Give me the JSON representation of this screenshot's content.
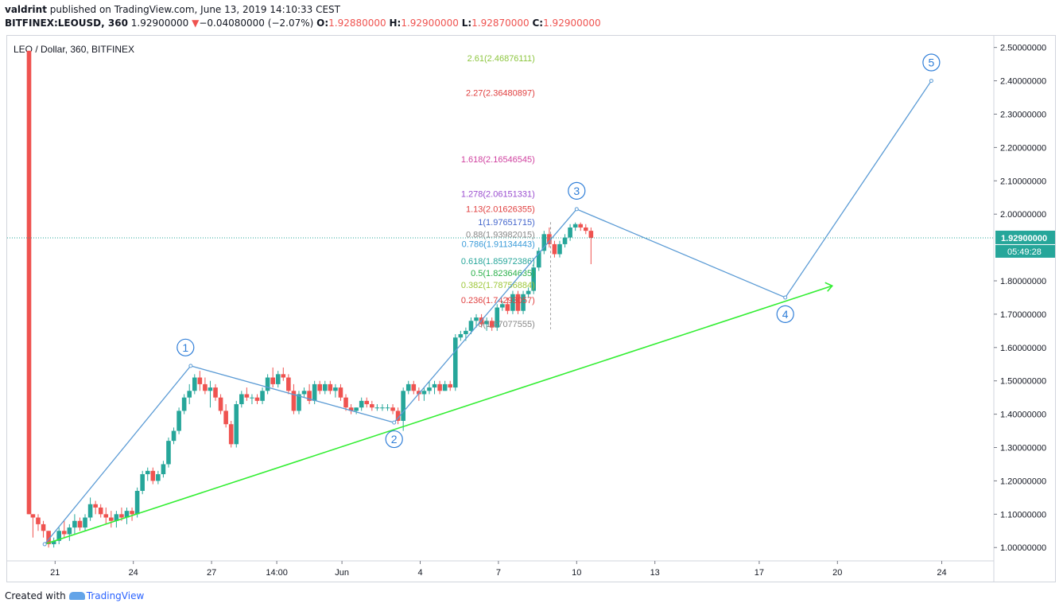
{
  "header": {
    "author": "valdrint",
    "published_text": "published on TradingView.com, June 13, 2019 14:10:33 CEST",
    "symbol": "BITFINEX:LEOUSD, 360",
    "last": "1.92900000",
    "change_arrow": "▼",
    "change": "−0.04080000 (−2.07%)",
    "o_label": "O:",
    "o": "1.92880000",
    "h_label": "H:",
    "h": "1.92900000",
    "l_label": "L:",
    "l": "1.92870000",
    "c_label": "C:",
    "c": "1.92900000"
  },
  "chart_title": "LEO / Dollar, 360, BITFINEX",
  "footer": {
    "created_with": "Created with",
    "brand": "TradingView"
  },
  "chart_data": {
    "type": "candlestick",
    "ylim": [
      0.96,
      2.535
    ],
    "y_ticks": [
      {
        "v": 1.0,
        "label": "1.00000000"
      },
      {
        "v": 1.1,
        "label": "1.10000000"
      },
      {
        "v": 1.2,
        "label": "1.20000000"
      },
      {
        "v": 1.3,
        "label": "1.30000000"
      },
      {
        "v": 1.4,
        "label": "1.40000000"
      },
      {
        "v": 1.5,
        "label": "1.50000000"
      },
      {
        "v": 1.6,
        "label": "1.60000000"
      },
      {
        "v": 1.7,
        "label": "1.70000000"
      },
      {
        "v": 1.8,
        "label": "1.80000000"
      },
      {
        "v": 2.0,
        "label": "2.00000000"
      },
      {
        "v": 2.1,
        "label": "2.10000000"
      },
      {
        "v": 2.2,
        "label": "2.20000000"
      },
      {
        "v": 2.3,
        "label": "2.30000000"
      },
      {
        "v": 2.4,
        "label": "2.40000000"
      },
      {
        "v": 2.5,
        "label": "2.50000000"
      }
    ],
    "x_ticks": [
      {
        "x": 1,
        "label": "21"
      },
      {
        "x": 4,
        "label": "24"
      },
      {
        "x": 7,
        "label": "27"
      },
      {
        "x": 9.5,
        "label": "14:00"
      },
      {
        "x": 12,
        "label": "Jun"
      },
      {
        "x": 15,
        "label": "4"
      },
      {
        "x": 18,
        "label": "7"
      },
      {
        "x": 21,
        "label": "10"
      },
      {
        "x": 24,
        "label": "13"
      },
      {
        "x": 28,
        "label": "17"
      },
      {
        "x": 31,
        "label": "20"
      },
      {
        "x": 35,
        "label": "24"
      }
    ],
    "colors": {
      "up": "#26a69a",
      "down": "#ef5350",
      "wave": "#5b9bd5",
      "trend": "#33ee33",
      "last": "#26a69a"
    },
    "candles": [
      [
        0.0,
        2.49,
        2.49,
        1.1,
        1.1
      ],
      [
        0.15,
        1.1,
        1.1,
        1.03,
        1.09
      ],
      [
        0.35,
        1.09,
        1.1,
        1.05,
        1.07
      ],
      [
        0.55,
        1.07,
        1.08,
        1.03,
        1.05
      ],
      [
        0.75,
        1.05,
        1.05,
        1.0,
        1.01
      ],
      [
        0.95,
        1.01,
        1.03,
        1.0,
        1.02
      ],
      [
        1.15,
        1.02,
        1.06,
        1.01,
        1.05
      ],
      [
        1.35,
        1.05,
        1.08,
        1.03,
        1.04
      ],
      [
        1.55,
        1.04,
        1.07,
        1.02,
        1.06
      ],
      [
        1.75,
        1.06,
        1.1,
        1.04,
        1.08
      ],
      [
        1.95,
        1.08,
        1.09,
        1.05,
        1.06
      ],
      [
        2.15,
        1.06,
        1.1,
        1.05,
        1.09
      ],
      [
        2.35,
        1.09,
        1.15,
        1.08,
        1.13
      ],
      [
        2.55,
        1.13,
        1.14,
        1.1,
        1.12
      ],
      [
        2.75,
        1.12,
        1.13,
        1.09,
        1.1
      ],
      [
        2.95,
        1.1,
        1.12,
        1.07,
        1.09
      ],
      [
        3.15,
        1.09,
        1.11,
        1.06,
        1.08
      ],
      [
        3.35,
        1.08,
        1.11,
        1.06,
        1.1
      ],
      [
        3.55,
        1.1,
        1.12,
        1.08,
        1.09
      ],
      [
        3.75,
        1.09,
        1.12,
        1.07,
        1.11
      ],
      [
        3.95,
        1.11,
        1.12,
        1.08,
        1.1
      ],
      [
        4.15,
        1.1,
        1.18,
        1.09,
        1.17
      ],
      [
        4.35,
        1.17,
        1.23,
        1.16,
        1.22
      ],
      [
        4.55,
        1.22,
        1.24,
        1.2,
        1.23
      ],
      [
        4.75,
        1.23,
        1.24,
        1.19,
        1.2
      ],
      [
        4.95,
        1.2,
        1.23,
        1.19,
        1.22
      ],
      [
        5.15,
        1.22,
        1.26,
        1.21,
        1.25
      ],
      [
        5.35,
        1.25,
        1.33,
        1.24,
        1.32
      ],
      [
        5.55,
        1.32,
        1.36,
        1.31,
        1.35
      ],
      [
        5.75,
        1.35,
        1.42,
        1.34,
        1.41
      ],
      [
        5.95,
        1.41,
        1.46,
        1.4,
        1.45
      ],
      [
        6.15,
        1.45,
        1.49,
        1.43,
        1.47
      ],
      [
        6.35,
        1.47,
        1.52,
        1.46,
        1.51
      ],
      [
        6.55,
        1.51,
        1.53,
        1.47,
        1.49
      ],
      [
        6.75,
        1.49,
        1.51,
        1.46,
        1.47
      ],
      [
        6.95,
        1.47,
        1.5,
        1.42,
        1.48
      ],
      [
        7.15,
        1.48,
        1.49,
        1.44,
        1.45
      ],
      [
        7.35,
        1.45,
        1.46,
        1.4,
        1.41
      ],
      [
        7.55,
        1.41,
        1.43,
        1.36,
        1.37
      ],
      [
        7.75,
        1.37,
        1.38,
        1.3,
        1.31
      ],
      [
        7.95,
        1.31,
        1.44,
        1.3,
        1.43
      ],
      [
        8.15,
        1.43,
        1.47,
        1.42,
        1.46
      ],
      [
        8.35,
        1.46,
        1.48,
        1.44,
        1.45
      ],
      [
        8.55,
        1.45,
        1.46,
        1.43,
        1.45
      ],
      [
        8.75,
        1.45,
        1.46,
        1.43,
        1.44
      ],
      [
        8.95,
        1.44,
        1.48,
        1.43,
        1.47
      ],
      [
        9.15,
        1.47,
        1.52,
        1.46,
        1.51
      ],
      [
        9.35,
        1.51,
        1.54,
        1.48,
        1.49
      ],
      [
        9.55,
        1.49,
        1.53,
        1.48,
        1.52
      ],
      [
        9.75,
        1.52,
        1.54,
        1.5,
        1.51
      ],
      [
        9.95,
        1.51,
        1.52,
        1.46,
        1.47
      ],
      [
        10.15,
        1.47,
        1.49,
        1.4,
        1.41
      ],
      [
        10.35,
        1.41,
        1.47,
        1.4,
        1.46
      ],
      [
        10.55,
        1.46,
        1.48,
        1.45,
        1.47
      ],
      [
        10.75,
        1.47,
        1.49,
        1.43,
        1.44
      ],
      [
        10.95,
        1.44,
        1.5,
        1.43,
        1.49
      ],
      [
        11.15,
        1.49,
        1.5,
        1.46,
        1.47
      ],
      [
        11.35,
        1.47,
        1.5,
        1.46,
        1.49
      ],
      [
        11.55,
        1.49,
        1.5,
        1.46,
        1.47
      ],
      [
        11.75,
        1.47,
        1.49,
        1.45,
        1.48
      ],
      [
        11.95,
        1.48,
        1.49,
        1.44,
        1.45
      ],
      [
        12.15,
        1.45,
        1.46,
        1.41,
        1.42
      ],
      [
        12.35,
        1.42,
        1.43,
        1.4,
        1.41
      ],
      [
        12.55,
        1.41,
        1.42,
        1.4,
        1.42
      ],
      [
        12.75,
        1.42,
        1.45,
        1.41,
        1.44
      ],
      [
        12.95,
        1.44,
        1.45,
        1.42,
        1.43
      ],
      [
        13.15,
        1.43,
        1.44,
        1.41,
        1.42
      ],
      [
        13.35,
        1.42,
        1.43,
        1.41,
        1.42
      ],
      [
        13.55,
        1.42,
        1.43,
        1.41,
        1.42
      ],
      [
        13.75,
        1.42,
        1.43,
        1.41,
        1.42
      ],
      [
        13.95,
        1.42,
        1.43,
        1.4,
        1.41
      ],
      [
        14.15,
        1.41,
        1.42,
        1.37,
        1.38
      ],
      [
        14.35,
        1.38,
        1.48,
        1.35,
        1.47
      ],
      [
        14.55,
        1.47,
        1.5,
        1.46,
        1.49
      ],
      [
        14.75,
        1.49,
        1.5,
        1.46,
        1.47
      ],
      [
        14.95,
        1.47,
        1.48,
        1.44,
        1.46
      ],
      [
        15.15,
        1.46,
        1.48,
        1.44,
        1.47
      ],
      [
        15.35,
        1.47,
        1.5,
        1.46,
        1.48
      ],
      [
        15.55,
        1.48,
        1.5,
        1.46,
        1.49
      ],
      [
        15.75,
        1.49,
        1.5,
        1.46,
        1.47
      ],
      [
        15.95,
        1.47,
        1.5,
        1.47,
        1.49
      ],
      [
        16.15,
        1.49,
        1.5,
        1.47,
        1.48
      ],
      [
        16.35,
        1.48,
        1.64,
        1.47,
        1.63
      ],
      [
        16.55,
        1.63,
        1.65,
        1.62,
        1.64
      ],
      [
        16.75,
        1.64,
        1.66,
        1.62,
        1.65
      ],
      [
        16.95,
        1.65,
        1.69,
        1.64,
        1.68
      ],
      [
        17.15,
        1.68,
        1.7,
        1.66,
        1.69
      ],
      [
        17.35,
        1.69,
        1.7,
        1.66,
        1.67
      ],
      [
        17.55,
        1.67,
        1.69,
        1.65,
        1.68
      ],
      [
        17.75,
        1.68,
        1.69,
        1.65,
        1.66
      ],
      [
        17.95,
        1.66,
        1.73,
        1.65,
        1.72
      ],
      [
        18.15,
        1.72,
        1.74,
        1.71,
        1.73
      ],
      [
        18.35,
        1.73,
        1.75,
        1.7,
        1.71
      ],
      [
        18.55,
        1.71,
        1.77,
        1.7,
        1.76
      ],
      [
        18.75,
        1.76,
        1.77,
        1.7,
        1.71
      ],
      [
        18.95,
        1.71,
        1.77,
        1.7,
        1.76
      ],
      [
        19.15,
        1.76,
        1.78,
        1.75,
        1.77
      ],
      [
        19.35,
        1.77,
        1.85,
        1.76,
        1.84
      ],
      [
        19.55,
        1.84,
        1.9,
        1.83,
        1.89
      ],
      [
        19.75,
        1.89,
        1.95,
        1.88,
        1.94
      ],
      [
        19.95,
        1.94,
        1.96,
        1.9,
        1.91
      ],
      [
        20.15,
        1.91,
        1.92,
        1.87,
        1.88
      ],
      [
        20.35,
        1.88,
        1.92,
        1.87,
        1.91
      ],
      [
        20.55,
        1.91,
        1.94,
        1.9,
        1.93
      ],
      [
        20.75,
        1.93,
        1.97,
        1.92,
        1.96
      ],
      [
        20.95,
        1.96,
        1.975,
        1.95,
        1.97
      ],
      [
        21.15,
        1.97,
        1.975,
        1.95,
        1.96
      ],
      [
        21.35,
        1.96,
        1.97,
        1.94,
        1.95
      ],
      [
        21.55,
        1.95,
        1.96,
        1.85,
        1.929
      ]
    ],
    "last_price": {
      "v": 1.929,
      "label": "1.92900000",
      "countdown": "05:49:28"
    },
    "wave": {
      "points": [
        [
          0.6,
          1.01
        ],
        [
          6.2,
          1.545
        ],
        [
          14.0,
          1.375
        ],
        [
          21.0,
          2.015
        ],
        [
          29.0,
          1.75
        ],
        [
          34.6,
          2.4
        ]
      ],
      "labels": [
        {
          "t": "1",
          "x": 6.0,
          "v": 1.6
        },
        {
          "t": "2",
          "x": 14.0,
          "v": 1.325
        },
        {
          "t": "3",
          "x": 21.0,
          "v": 2.07
        },
        {
          "t": "4",
          "x": 29.0,
          "v": 1.7
        },
        {
          "t": "5",
          "x": 34.6,
          "v": 2.455
        }
      ]
    },
    "trendline": [
      [
        0.6,
        1.01
      ],
      [
        30.8,
        1.785
      ]
    ],
    "fib": {
      "x_label": 19.4,
      "x_dash": 20.0,
      "v_top": 1.976,
      "v_bottom": 1.655,
      "levels": [
        {
          "text": "2.61(2.46876111)",
          "v": 2.46876111,
          "color": "#8dc63f"
        },
        {
          "text": "2.27(2.36480897)",
          "v": 2.36480897,
          "color": "#e04040"
        },
        {
          "text": "1.618(2.16546545)",
          "v": 2.16546545,
          "color": "#d042a0"
        },
        {
          "text": "1.278(2.06151331)",
          "v": 2.06151331,
          "color": "#9b4fd0"
        },
        {
          "text": "1.13(2.01626355)",
          "v": 2.01626355,
          "color": "#e04040"
        },
        {
          "text": "1(1.97651715)",
          "v": 1.97651715,
          "color": "#4466cc"
        },
        {
          "text": "0.88(1.93982015)",
          "v": 1.93982015,
          "color": "#888888"
        },
        {
          "text": "0.786(1.91134443)",
          "v": 1.91134443,
          "color": "#3a9bd9"
        },
        {
          "text": "0.618(1.85972386)",
          "v": 1.85972386,
          "color": "#26a69a"
        },
        {
          "text": "0.5(1.82364635)",
          "v": 1.82364635,
          "color": "#2bb04a"
        },
        {
          "text": "0.382(1.78756884)",
          "v": 1.78756884,
          "color": "#9ec73a"
        },
        {
          "text": "0.236(1.74293057)",
          "v": 1.74293057,
          "color": "#e04040"
        },
        {
          "text": "0(1.67077555)",
          "v": 1.67077555,
          "color": "#888888"
        }
      ]
    }
  }
}
